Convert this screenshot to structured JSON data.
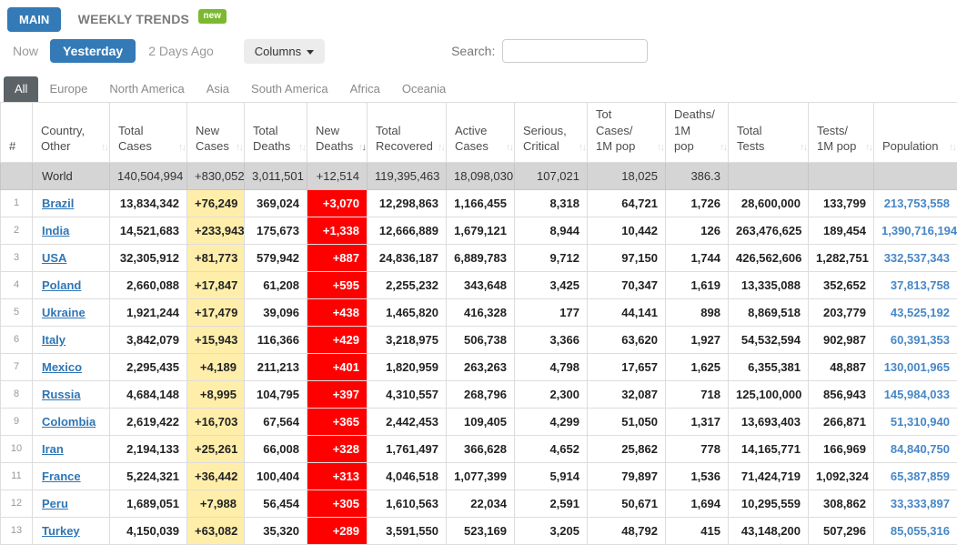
{
  "header": {
    "main_tab": "MAIN",
    "weekly_tab": "WEEKLY TRENDS",
    "new_badge": "new"
  },
  "filters": {
    "time": [
      {
        "label": "Now",
        "active": false
      },
      {
        "label": "Yesterday",
        "active": true
      },
      {
        "label": "2 Days Ago",
        "active": false
      }
    ],
    "columns_button": "Columns",
    "search_label": "Search:",
    "search_value": ""
  },
  "continents": [
    {
      "label": "All",
      "active": true
    },
    {
      "label": "Europe",
      "active": false
    },
    {
      "label": "North America",
      "active": false
    },
    {
      "label": "Asia",
      "active": false
    },
    {
      "label": "South America",
      "active": false
    },
    {
      "label": "Africa",
      "active": false
    },
    {
      "label": "Oceania",
      "active": false
    }
  ],
  "colors": {
    "accent_blue": "#337ab7",
    "badge_green": "#7cb82f",
    "new_cases_bg": "#ffeeaa",
    "new_deaths_bg": "#ff0000",
    "world_row_bg": "#d5d5d5",
    "population_link": "#4687c7",
    "active_tab_bg": "#5b6367"
  },
  "table": {
    "columns": [
      {
        "key": "rank",
        "line1": "#",
        "line2": "",
        "sort": "none"
      },
      {
        "key": "country",
        "line1": "Country,",
        "line2": "Other",
        "sort": "both"
      },
      {
        "key": "total-cases",
        "line1": "Total",
        "line2": "Cases",
        "sort": "both"
      },
      {
        "key": "new-cases",
        "line1": "New",
        "line2": "Cases",
        "sort": "both"
      },
      {
        "key": "total-deaths",
        "line1": "Total",
        "line2": "Deaths",
        "sort": "both"
      },
      {
        "key": "new-deaths",
        "line1": "New",
        "line2": "Deaths",
        "sort": "desc"
      },
      {
        "key": "total-recovered",
        "line1": "Total",
        "line2": "Recovered",
        "sort": "both"
      },
      {
        "key": "active-cases",
        "line1": "Active",
        "line2": "Cases",
        "sort": "both"
      },
      {
        "key": "serious-critical",
        "line1": "Serious,",
        "line2": "Critical",
        "sort": "both"
      },
      {
        "key": "cases-per-1m",
        "line1": "Tot Cases/",
        "line2": "1M pop",
        "sort": "both"
      },
      {
        "key": "deaths-per-1m",
        "line1": "Deaths/",
        "line2": "1M pop",
        "sort": "both"
      },
      {
        "key": "total-tests",
        "line1": "Total",
        "line2": "Tests",
        "sort": "both"
      },
      {
        "key": "tests-per-1m",
        "line1": "Tests/",
        "line2": "1M pop",
        "sort": "both"
      },
      {
        "key": "population",
        "line1": "Population",
        "line2": "",
        "sort": "both"
      }
    ],
    "world_row": {
      "name": "World",
      "values": [
        "140,504,994",
        "+830,052",
        "3,011,501",
        "+12,514",
        "119,395,463",
        "18,098,030",
        "107,021",
        "18,025",
        "386.3",
        "",
        "",
        ""
      ]
    },
    "rows": [
      {
        "rank": "1",
        "country": "Brazil",
        "values": [
          "13,834,342",
          "+76,249",
          "369,024",
          "+3,070",
          "12,298,863",
          "1,166,455",
          "8,318",
          "64,721",
          "1,726",
          "28,600,000",
          "133,799",
          "213,753,558"
        ]
      },
      {
        "rank": "2",
        "country": "India",
        "values": [
          "14,521,683",
          "+233,943",
          "175,673",
          "+1,338",
          "12,666,889",
          "1,679,121",
          "8,944",
          "10,442",
          "126",
          "263,476,625",
          "189,454",
          "1,390,716,194"
        ]
      },
      {
        "rank": "3",
        "country": "USA",
        "values": [
          "32,305,912",
          "+81,773",
          "579,942",
          "+887",
          "24,836,187",
          "6,889,783",
          "9,712",
          "97,150",
          "1,744",
          "426,562,606",
          "1,282,751",
          "332,537,343"
        ]
      },
      {
        "rank": "4",
        "country": "Poland",
        "values": [
          "2,660,088",
          "+17,847",
          "61,208",
          "+595",
          "2,255,232",
          "343,648",
          "3,425",
          "70,347",
          "1,619",
          "13,335,088",
          "352,652",
          "37,813,758"
        ]
      },
      {
        "rank": "5",
        "country": "Ukraine",
        "values": [
          "1,921,244",
          "+17,479",
          "39,096",
          "+438",
          "1,465,820",
          "416,328",
          "177",
          "44,141",
          "898",
          "8,869,518",
          "203,779",
          "43,525,192"
        ]
      },
      {
        "rank": "6",
        "country": "Italy",
        "values": [
          "3,842,079",
          "+15,943",
          "116,366",
          "+429",
          "3,218,975",
          "506,738",
          "3,366",
          "63,620",
          "1,927",
          "54,532,594",
          "902,987",
          "60,391,353"
        ]
      },
      {
        "rank": "7",
        "country": "Mexico",
        "values": [
          "2,295,435",
          "+4,189",
          "211,213",
          "+401",
          "1,820,959",
          "263,263",
          "4,798",
          "17,657",
          "1,625",
          "6,355,381",
          "48,887",
          "130,001,965"
        ]
      },
      {
        "rank": "8",
        "country": "Russia",
        "values": [
          "4,684,148",
          "+8,995",
          "104,795",
          "+397",
          "4,310,557",
          "268,796",
          "2,300",
          "32,087",
          "718",
          "125,100,000",
          "856,943",
          "145,984,033"
        ]
      },
      {
        "rank": "9",
        "country": "Colombia",
        "values": [
          "2,619,422",
          "+16,703",
          "67,564",
          "+365",
          "2,442,453",
          "109,405",
          "4,299",
          "51,050",
          "1,317",
          "13,693,403",
          "266,871",
          "51,310,940"
        ]
      },
      {
        "rank": "10",
        "country": "Iran",
        "values": [
          "2,194,133",
          "+25,261",
          "66,008",
          "+328",
          "1,761,497",
          "366,628",
          "4,652",
          "25,862",
          "778",
          "14,165,771",
          "166,969",
          "84,840,750"
        ]
      },
      {
        "rank": "11",
        "country": "France",
        "values": [
          "5,224,321",
          "+36,442",
          "100,404",
          "+313",
          "4,046,518",
          "1,077,399",
          "5,914",
          "79,897",
          "1,536",
          "71,424,719",
          "1,092,324",
          "65,387,859"
        ]
      },
      {
        "rank": "12",
        "country": "Peru",
        "values": [
          "1,689,051",
          "+7,988",
          "56,454",
          "+305",
          "1,610,563",
          "22,034",
          "2,591",
          "50,671",
          "1,694",
          "10,295,559",
          "308,862",
          "33,333,897"
        ]
      },
      {
        "rank": "13",
        "country": "Turkey",
        "values": [
          "4,150,039",
          "+63,082",
          "35,320",
          "+289",
          "3,591,550",
          "523,169",
          "3,205",
          "48,792",
          "415",
          "43,148,200",
          "507,296",
          "85,055,316"
        ]
      }
    ]
  }
}
